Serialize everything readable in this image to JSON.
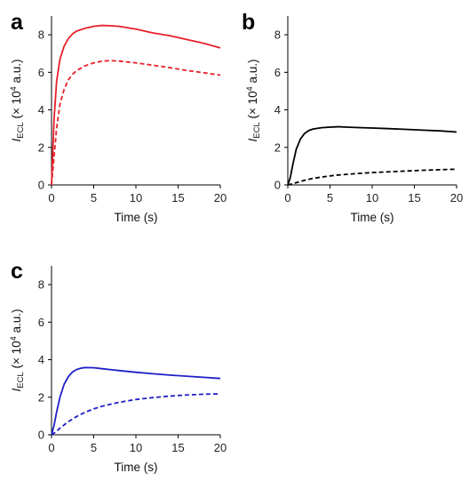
{
  "chart_data": [
    {
      "type": "line",
      "panel_label": "a",
      "xlabel": "Time (s)",
      "ylabel": {
        "var": "I",
        "sub": "ECL",
        "pre": " (× 10",
        "sup": "4",
        "post": " a.u.)"
      },
      "xlim": [
        0,
        20
      ],
      "ylim": [
        0,
        9
      ],
      "x_ticks": [
        0,
        5,
        10,
        15,
        20
      ],
      "y_ticks": [
        0,
        2,
        4,
        6,
        8
      ],
      "series": [
        {
          "style": "solid",
          "color": "#e8202a",
          "x": [
            0,
            0.3,
            0.6,
            1,
            1.5,
            2,
            2.5,
            3,
            4,
            5,
            6,
            7,
            8,
            10,
            12,
            14,
            16,
            18,
            20
          ],
          "y": [
            0,
            3.5,
            5.5,
            6.7,
            7.4,
            7.8,
            8.05,
            8.2,
            8.35,
            8.45,
            8.5,
            8.48,
            8.45,
            8.3,
            8.1,
            7.95,
            7.75,
            7.55,
            7.3
          ]
        },
        {
          "style": "dashed",
          "color": "#e8202a",
          "x": [
            0,
            0.3,
            0.6,
            1,
            1.5,
            2,
            2.5,
            3,
            4,
            5,
            6,
            7,
            8,
            10,
            12,
            14,
            16,
            18,
            20
          ],
          "y": [
            0,
            1.5,
            3,
            4.3,
            5.1,
            5.6,
            5.9,
            6.1,
            6.35,
            6.5,
            6.6,
            6.62,
            6.6,
            6.5,
            6.38,
            6.25,
            6.1,
            5.98,
            5.85
          ]
        }
      ]
    },
    {
      "type": "line",
      "panel_label": "b",
      "xlabel": "Time (s)",
      "ylabel": {
        "var": "I",
        "sub": "ECL",
        "pre": " (× 10",
        "sup": "4",
        "post": " a.u.)"
      },
      "xlim": [
        0,
        20
      ],
      "ylim": [
        0,
        9
      ],
      "x_ticks": [
        0,
        5,
        10,
        15,
        20
      ],
      "y_ticks": [
        0,
        2,
        4,
        6,
        8
      ],
      "series": [
        {
          "style": "solid",
          "color": "#000000",
          "x": [
            0,
            0.3,
            0.6,
            1,
            1.5,
            2,
            2.5,
            3,
            4,
            5,
            6,
            7,
            8,
            10,
            12,
            14,
            16,
            18,
            20
          ],
          "y": [
            0,
            0.4,
            1.1,
            1.9,
            2.45,
            2.75,
            2.9,
            2.98,
            3.05,
            3.08,
            3.1,
            3.08,
            3.06,
            3.03,
            3.0,
            2.96,
            2.92,
            2.88,
            2.82
          ]
        },
        {
          "style": "dashed",
          "color": "#000000",
          "x": [
            0,
            0.5,
            1,
            2,
            3,
            4,
            5,
            6,
            8,
            10,
            12,
            14,
            16,
            18,
            20
          ],
          "y": [
            0,
            0.05,
            0.12,
            0.25,
            0.35,
            0.42,
            0.48,
            0.53,
            0.6,
            0.66,
            0.7,
            0.74,
            0.78,
            0.81,
            0.84
          ]
        }
      ]
    },
    {
      "type": "line",
      "panel_label": "c",
      "xlabel": "Time (s)",
      "ylabel": {
        "var": "I",
        "sub": "ECL",
        "pre": " (× 10",
        "sup": "4",
        "post": " a.u.)"
      },
      "xlim": [
        0,
        20
      ],
      "ylim": [
        0,
        9
      ],
      "x_ticks": [
        0,
        5,
        10,
        15,
        20
      ],
      "y_ticks": [
        0,
        2,
        4,
        6,
        8
      ],
      "series": [
        {
          "style": "solid",
          "color": "#1f1fc8",
          "x": [
            0,
            0.3,
            0.6,
            1,
            1.5,
            2,
            2.5,
            3,
            3.5,
            4,
            5,
            6,
            7,
            8,
            10,
            12,
            14,
            16,
            18,
            20
          ],
          "y": [
            0,
            0.5,
            1.2,
            2.0,
            2.7,
            3.1,
            3.35,
            3.48,
            3.55,
            3.58,
            3.57,
            3.52,
            3.47,
            3.42,
            3.33,
            3.25,
            3.18,
            3.12,
            3.06,
            3.0
          ]
        },
        {
          "style": "dashed",
          "color": "#1f1fc8",
          "x": [
            0,
            0.5,
            1,
            2,
            3,
            4,
            5,
            6,
            8,
            10,
            12,
            14,
            16,
            18,
            20
          ],
          "y": [
            0,
            0.15,
            0.35,
            0.7,
            0.98,
            1.2,
            1.38,
            1.52,
            1.73,
            1.88,
            1.98,
            2.06,
            2.12,
            2.16,
            2.18
          ]
        }
      ]
    }
  ]
}
